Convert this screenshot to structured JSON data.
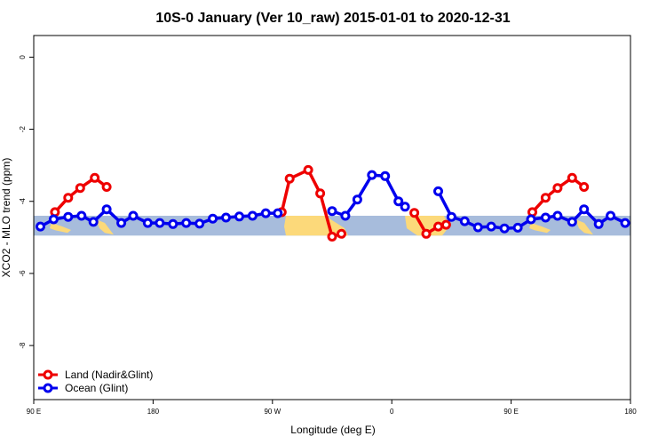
{
  "chart_data": {
    "type": "line",
    "title": "10S-0 January (Ver 10_raw)   2015-01-01 to 2020-12-31",
    "xlabel": "Longitude (deg E)",
    "ylabel": "XCO2 - MLO trend (ppm)",
    "xlim": [
      90,
      540
    ],
    "ylim": [
      -9.5,
      0.6
    ],
    "x_ticks": [
      {
        "value": 90,
        "label": "90 E"
      },
      {
        "value": 180,
        "label": "180"
      },
      {
        "value": 270,
        "label": "90 W"
      },
      {
        "value": 360,
        "label": "0"
      },
      {
        "value": 450,
        "label": "90 E"
      },
      {
        "value": 540,
        "label": "180"
      }
    ],
    "y_ticks": [
      {
        "value": 0,
        "label": "0"
      },
      {
        "value": -2,
        "label": "-2"
      },
      {
        "value": -4,
        "label": "-4"
      },
      {
        "value": -6,
        "label": "-6"
      },
      {
        "value": -8,
        "label": "-8"
      }
    ],
    "band": {
      "y_min": -4.95,
      "y_max": -4.4,
      "color": "#a7bcdc",
      "land_color": "#fcd97a"
    },
    "legend": {
      "position": "bottom-left"
    },
    "series": [
      {
        "name": "Land (Nadir&Glint)",
        "color": "#ee0000",
        "segments": [
          [
            [
              106,
              -4.3
            ],
            [
              116,
              -3.9
            ],
            [
              125,
              -3.63
            ],
            [
              136,
              -3.35
            ],
            [
              145,
              -3.6
            ]
          ],
          [
            [
              277,
              -4.3
            ],
            [
              283,
              -3.37
            ],
            [
              297,
              -3.13
            ],
            [
              306,
              -3.78
            ],
            [
              315,
              -4.98
            ],
            [
              322,
              -4.9
            ]
          ],
          [
            [
              377,
              -4.32
            ],
            [
              386,
              -4.9
            ],
            [
              395,
              -4.7
            ],
            [
              401,
              -4.65
            ]
          ],
          [
            [
              466,
              -4.3
            ],
            [
              476,
              -3.9
            ],
            [
              485,
              -3.63
            ],
            [
              496,
              -3.35
            ],
            [
              505,
              -3.6
            ]
          ]
        ]
      },
      {
        "name": "Ocean (Glint)",
        "color": "#0000ee",
        "segments": [
          [
            [
              95,
              -4.7
            ],
            [
              105,
              -4.5
            ],
            [
              116,
              -4.43
            ],
            [
              126,
              -4.4
            ],
            [
              135,
              -4.57
            ],
            [
              145,
              -4.22
            ],
            [
              156,
              -4.6
            ],
            [
              165,
              -4.4
            ],
            [
              176,
              -4.6
            ],
            [
              185,
              -4.6
            ],
            [
              195,
              -4.63
            ],
            [
              205,
              -4.6
            ],
            [
              215,
              -4.62
            ],
            [
              225,
              -4.48
            ],
            [
              235,
              -4.45
            ],
            [
              245,
              -4.42
            ],
            [
              255,
              -4.4
            ],
            [
              265,
              -4.33
            ],
            [
              274,
              -4.33
            ]
          ],
          [
            [
              315,
              -4.27
            ],
            [
              325,
              -4.4
            ],
            [
              334,
              -3.95
            ],
            [
              345,
              -3.27
            ],
            [
              355,
              -3.3
            ],
            [
              365,
              -4.0
            ],
            [
              370,
              -4.15
            ]
          ],
          [
            [
              395,
              -3.72
            ],
            [
              405,
              -4.43
            ],
            [
              415,
              -4.55
            ],
            [
              425,
              -4.72
            ],
            [
              435,
              -4.7
            ],
            [
              445,
              -4.75
            ],
            [
              455,
              -4.73
            ],
            [
              465,
              -4.5
            ],
            [
              476,
              -4.45
            ],
            [
              485,
              -4.4
            ],
            [
              496,
              -4.57
            ],
            [
              505,
              -4.22
            ],
            [
              516,
              -4.63
            ],
            [
              525,
              -4.4
            ],
            [
              536,
              -4.6
            ]
          ]
        ]
      }
    ]
  }
}
